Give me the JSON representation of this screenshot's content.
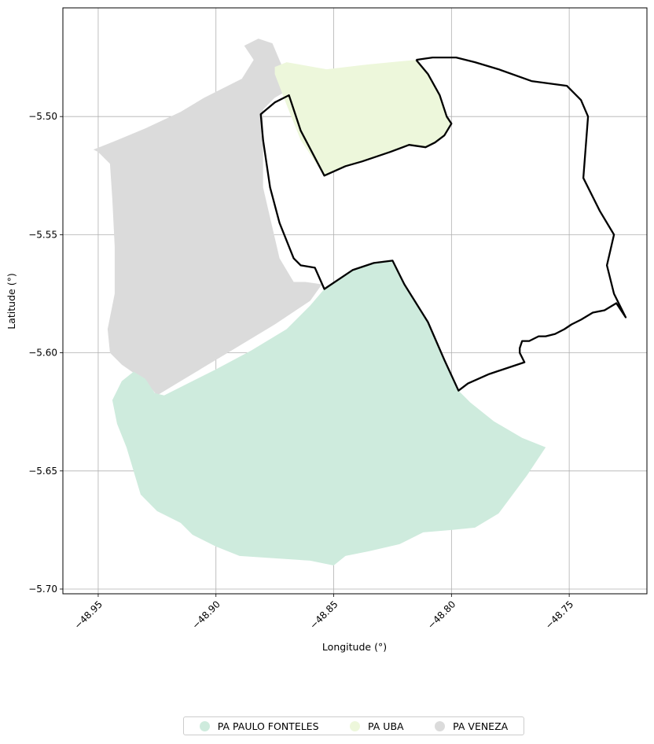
{
  "chart_data": {
    "type": "map",
    "xlabel": "Longitude (°)",
    "ylabel": "Latitude (°)",
    "xlim": [
      -48.965,
      -48.717
    ],
    "ylim": [
      -5.702,
      -5.454
    ],
    "grid": true,
    "x_ticks": [
      {
        "value": -48.95,
        "label": "−48.95"
      },
      {
        "value": -48.9,
        "label": "−48.90"
      },
      {
        "value": -48.85,
        "label": "−48.85"
      },
      {
        "value": -48.8,
        "label": "−48.80"
      },
      {
        "value": -48.75,
        "label": "−48.75"
      }
    ],
    "y_ticks": [
      {
        "value": -5.5,
        "label": "−5.50"
      },
      {
        "value": -5.55,
        "label": "−5.55"
      },
      {
        "value": -5.6,
        "label": "−5.60"
      },
      {
        "value": -5.65,
        "label": "−5.65"
      },
      {
        "value": -5.7,
        "label": "−5.70"
      }
    ],
    "legend_position": "bottom-center",
    "regions": [
      {
        "name": "PA PAULO FONTELES",
        "color": "#ceebdd",
        "coords": [
          [
            -48.854,
            -5.573
          ],
          [
            -48.842,
            -5.565
          ],
          [
            -48.833,
            -5.562
          ],
          [
            -48.825,
            -5.561
          ],
          [
            -48.82,
            -5.571
          ],
          [
            -48.81,
            -5.587
          ],
          [
            -48.803,
            -5.603
          ],
          [
            -48.797,
            -5.616
          ],
          [
            -48.792,
            -5.621
          ],
          [
            -48.782,
            -5.629
          ],
          [
            -48.77,
            -5.636
          ],
          [
            -48.76,
            -5.64
          ],
          [
            -48.768,
            -5.652
          ],
          [
            -48.78,
            -5.668
          ],
          [
            -48.79,
            -5.674
          ],
          [
            -48.8,
            -5.675
          ],
          [
            -48.812,
            -5.676
          ],
          [
            -48.822,
            -5.681
          ],
          [
            -48.835,
            -5.684
          ],
          [
            -48.845,
            -5.686
          ],
          [
            -48.85,
            -5.69
          ],
          [
            -48.86,
            -5.688
          ],
          [
            -48.875,
            -5.687
          ],
          [
            -48.89,
            -5.686
          ],
          [
            -48.9,
            -5.682
          ],
          [
            -48.91,
            -5.677
          ],
          [
            -48.915,
            -5.672
          ],
          [
            -48.925,
            -5.667
          ],
          [
            -48.932,
            -5.66
          ],
          [
            -48.935,
            -5.65
          ],
          [
            -48.938,
            -5.64
          ],
          [
            -48.942,
            -5.63
          ],
          [
            -48.944,
            -5.62
          ],
          [
            -48.94,
            -5.612
          ],
          [
            -48.935,
            -5.608
          ],
          [
            -48.93,
            -5.611
          ],
          [
            -48.926,
            -5.617
          ],
          [
            -48.922,
            -5.618
          ],
          [
            -48.912,
            -5.613
          ],
          [
            -48.9,
            -5.607
          ],
          [
            -48.885,
            -5.599
          ],
          [
            -48.87,
            -5.59
          ],
          [
            -48.86,
            -5.58
          ]
        ]
      },
      {
        "name": "PA UBA",
        "color": "#edf7db",
        "coords": [
          [
            -48.875,
            -5.479
          ],
          [
            -48.87,
            -5.477
          ],
          [
            -48.853,
            -5.48
          ],
          [
            -48.836,
            -5.478
          ],
          [
            -48.815,
            -5.476
          ],
          [
            -48.81,
            -5.482
          ],
          [
            -48.805,
            -5.491
          ],
          [
            -48.802,
            -5.5
          ],
          [
            -48.8,
            -5.503
          ],
          [
            -48.803,
            -5.508
          ],
          [
            -48.807,
            -5.511
          ],
          [
            -48.811,
            -5.513
          ],
          [
            -48.818,
            -5.512
          ],
          [
            -48.826,
            -5.515
          ],
          [
            -48.838,
            -5.519
          ],
          [
            -48.845,
            -5.521
          ],
          [
            -48.854,
            -5.525
          ],
          [
            -48.864,
            -5.51
          ],
          [
            -48.87,
            -5.495
          ],
          [
            -48.875,
            -5.482
          ]
        ]
      },
      {
        "name": "PA VENEZA",
        "color": "#dbdbdb",
        "coords": [
          [
            -48.888,
            -5.47
          ],
          [
            -48.882,
            -5.467
          ],
          [
            -48.876,
            -5.469
          ],
          [
            -48.868,
            -5.488
          ],
          [
            -48.875,
            -5.492
          ],
          [
            -48.88,
            -5.497
          ],
          [
            -48.88,
            -5.53
          ],
          [
            -48.873,
            -5.56
          ],
          [
            -48.867,
            -5.57
          ],
          [
            -48.862,
            -5.57
          ],
          [
            -48.855,
            -5.571
          ],
          [
            -48.86,
            -5.578
          ],
          [
            -48.875,
            -5.588
          ],
          [
            -48.895,
            -5.6
          ],
          [
            -48.915,
            -5.612
          ],
          [
            -48.925,
            -5.618
          ],
          [
            -48.93,
            -5.612
          ],
          [
            -48.94,
            -5.605
          ],
          [
            -48.945,
            -5.6
          ],
          [
            -48.946,
            -5.59
          ],
          [
            -48.943,
            -5.575
          ],
          [
            -48.943,
            -5.555
          ],
          [
            -48.944,
            -5.535
          ],
          [
            -48.945,
            -5.52
          ],
          [
            -48.95,
            -5.515
          ],
          [
            -48.952,
            -5.514
          ],
          [
            -48.942,
            -5.51
          ],
          [
            -48.93,
            -5.505
          ],
          [
            -48.915,
            -5.498
          ],
          [
            -48.905,
            -5.492
          ],
          [
            -48.889,
            -5.484
          ],
          [
            -48.884,
            -5.476
          ]
        ]
      }
    ],
    "outline": {
      "color": "#000000",
      "coords": [
        [
          -48.815,
          -5.476
        ],
        [
          -48.808,
          -5.475
        ],
        [
          -48.798,
          -5.475
        ],
        [
          -48.79,
          -5.477
        ],
        [
          -48.78,
          -5.48
        ],
        [
          -48.766,
          -5.485
        ],
        [
          -48.751,
          -5.487
        ],
        [
          -48.745,
          -5.493
        ],
        [
          -48.742,
          -5.5
        ],
        [
          -48.743,
          -5.513
        ],
        [
          -48.744,
          -5.526
        ],
        [
          -48.737,
          -5.54
        ],
        [
          -48.731,
          -5.55
        ],
        [
          -48.734,
          -5.563
        ],
        [
          -48.731,
          -5.575
        ],
        [
          -48.726,
          -5.585
        ],
        [
          -48.73,
          -5.579
        ],
        [
          -48.735,
          -5.582
        ],
        [
          -48.74,
          -5.583
        ],
        [
          -48.745,
          -5.586
        ],
        [
          -48.749,
          -5.588
        ],
        [
          -48.752,
          -5.59
        ],
        [
          -48.756,
          -5.592
        ],
        [
          -48.76,
          -5.593
        ],
        [
          -48.763,
          -5.593
        ],
        [
          -48.767,
          -5.595
        ],
        [
          -48.77,
          -5.595
        ],
        [
          -48.771,
          -5.598
        ],
        [
          -48.771,
          -5.6
        ],
        [
          -48.769,
          -5.604
        ],
        [
          -48.775,
          -5.606
        ],
        [
          -48.784,
          -5.609
        ],
        [
          -48.793,
          -5.613
        ],
        [
          -48.797,
          -5.616
        ],
        [
          -48.803,
          -5.603
        ],
        [
          -48.81,
          -5.587
        ],
        [
          -48.82,
          -5.571
        ],
        [
          -48.825,
          -5.561
        ],
        [
          -48.833,
          -5.562
        ],
        [
          -48.842,
          -5.565
        ],
        [
          -48.854,
          -5.573
        ],
        [
          -48.858,
          -5.564
        ],
        [
          -48.864,
          -5.563
        ],
        [
          -48.867,
          -5.56
        ],
        [
          -48.873,
          -5.545
        ],
        [
          -48.877,
          -5.53
        ],
        [
          -48.88,
          -5.51
        ],
        [
          -48.881,
          -5.499
        ],
        [
          -48.875,
          -5.494
        ],
        [
          -48.869,
          -5.491
        ],
        [
          -48.864,
          -5.506
        ],
        [
          -48.854,
          -5.525
        ],
        [
          -48.845,
          -5.521
        ],
        [
          -48.838,
          -5.519
        ],
        [
          -48.826,
          -5.515
        ],
        [
          -48.818,
          -5.512
        ],
        [
          -48.811,
          -5.513
        ],
        [
          -48.807,
          -5.511
        ],
        [
          -48.803,
          -5.508
        ],
        [
          -48.8,
          -5.503
        ],
        [
          -48.802,
          -5.5
        ],
        [
          -48.805,
          -5.491
        ],
        [
          -48.81,
          -5.482
        ],
        [
          -48.815,
          -5.476
        ]
      ]
    }
  }
}
